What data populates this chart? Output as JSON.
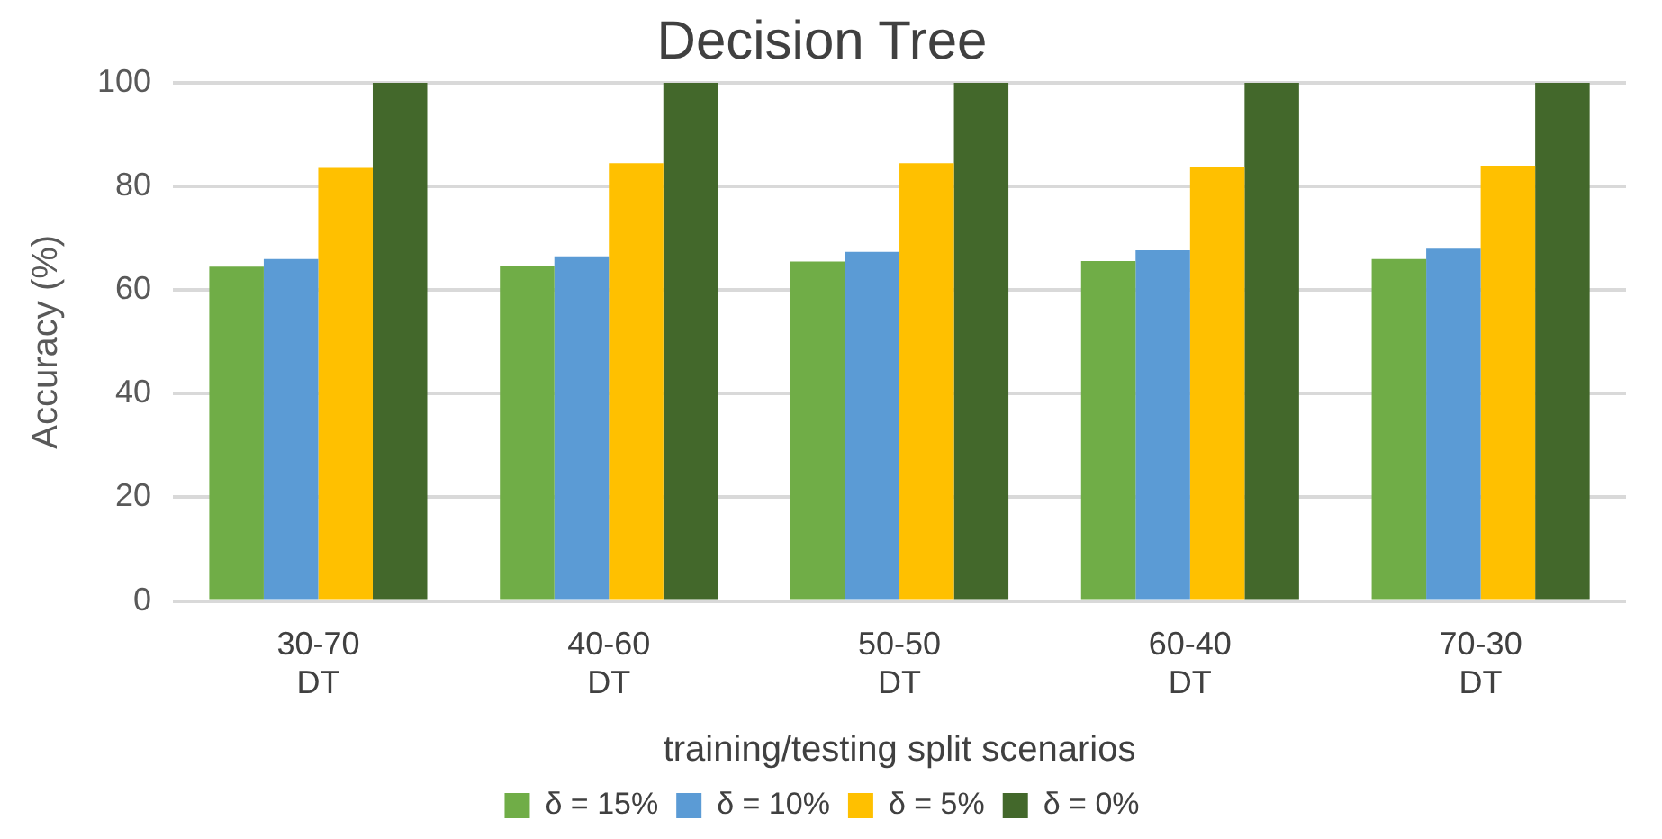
{
  "chart_data": {
    "type": "bar",
    "title": "Decision Tree",
    "xlabel": "training/testing split scenarios",
    "ylabel": "Accuracy (%)",
    "categories": [
      "30-70\nDT",
      "40-60\nDT",
      "50-50\nDT",
      "60-40\nDT",
      "70-30\nDT"
    ],
    "series": [
      {
        "name": "δ = 15%",
        "color": "#70ad47",
        "values": [
          64.5,
          64.6,
          65.5,
          65.6,
          66
        ]
      },
      {
        "name": "δ = 10%",
        "color": "#5b9bd5",
        "values": [
          66,
          66.5,
          67.4,
          67.7,
          68
        ]
      },
      {
        "name": "δ = 5%",
        "color": "#ffc000",
        "values": [
          83.6,
          84.5,
          84.5,
          83.7,
          84
        ]
      },
      {
        "name": "δ = 0%",
        "color": "#43682b",
        "values": [
          100,
          100,
          100,
          100,
          100
        ]
      }
    ],
    "ylim": [
      0,
      100
    ],
    "yticks": [
      0,
      20,
      40,
      60,
      80,
      100
    ],
    "grid": "y",
    "legend": "bottom"
  }
}
